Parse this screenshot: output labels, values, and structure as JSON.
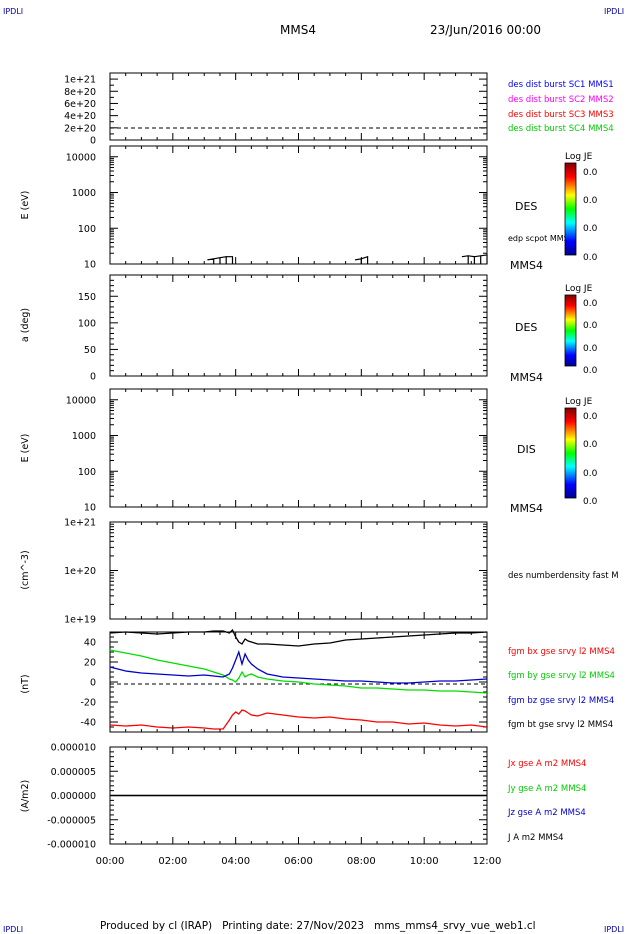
{
  "corner_tag": "IPDLI",
  "header": {
    "spacecraft": "MMS4",
    "date": "23/Jun/2016 00:00"
  },
  "footer": {
    "text": "Produced by cl (IRAP)   Printing date: 27/Nov/2023   mms_mms4_srvy_vue_web1.cl"
  },
  "colors": {
    "series1": "#0000ff",
    "series2": "#ff00ff",
    "series3": "#ff0000",
    "series4": "#00dd00",
    "blue": "#0000cc",
    "red": "#ff0000",
    "green": "#00dd00",
    "black": "#000000"
  },
  "x_axis": {
    "ticks": [
      "00:00",
      "02:00",
      "04:00",
      "06:00",
      "08:00",
      "10:00",
      "12:00"
    ]
  },
  "chart_data": [
    {
      "type": "line",
      "panel": "burst",
      "yticks": [
        "1e+21",
        "8e+20",
        "6e+20",
        "4e+20",
        "2e+20",
        "0"
      ],
      "ylim": [
        0,
        1.1e+21
      ],
      "legend": [
        "des dist burst SC1 MMS1",
        "des dist burst SC2 MMS2",
        "des dist burst SC3 MMS3",
        "des dist burst SC4 MMS4"
      ]
    },
    {
      "type": "heatmap",
      "panel": "des-energy",
      "ylabel": "E (eV)",
      "log": true,
      "yticks": [
        "10000",
        "1000",
        "100",
        "10"
      ],
      "ylim": [
        10,
        20000
      ],
      "instrument": "DES",
      "spacecraft": "MMS4",
      "overlay_label": "edp scpot MMS4",
      "colorbar": {
        "title": "Log JE",
        "ticks": [
          "0.0",
          "0.0",
          "0.0",
          "0.0"
        ]
      },
      "scpot_segments": [
        {
          "x": [
            3.1,
            3.3,
            3.5,
            3.7,
            3.9
          ],
          "y": [
            13,
            14,
            15,
            16,
            16
          ]
        },
        {
          "x": [
            7.8,
            8.0,
            8.2
          ],
          "y": [
            13,
            14,
            16
          ]
        },
        {
          "x": [
            11.2,
            11.4,
            11.6,
            11.8,
            12.0
          ],
          "y": [
            16,
            17,
            16,
            17,
            18
          ]
        }
      ]
    },
    {
      "type": "heatmap",
      "panel": "des-pitch",
      "ylabel": "a (deg)",
      "yticks": [
        "150",
        "100",
        "50",
        "0"
      ],
      "ylim": [
        0,
        190
      ],
      "instrument": "DES",
      "spacecraft": "MMS4",
      "colorbar": {
        "title": "Log JE",
        "ticks": [
          "0.0",
          "0.0",
          "0.0",
          "0.0"
        ]
      }
    },
    {
      "type": "heatmap",
      "panel": "dis-energy",
      "ylabel": "E (eV)",
      "log": true,
      "yticks": [
        "10000",
        "1000",
        "100",
        "10"
      ],
      "ylim": [
        10,
        20000
      ],
      "instrument": "DIS",
      "spacecraft": "MMS4",
      "colorbar": {
        "title": "Log JE",
        "ticks": [
          "0.0",
          "0.0",
          "0.0",
          "0.0"
        ]
      }
    },
    {
      "type": "line",
      "panel": "density",
      "ylabel": "(cm^-3)",
      "yticks": [
        "1e+21",
        "1e+20",
        "1e+19"
      ],
      "log": true,
      "ylim": [
        1e+19,
        1e+21
      ],
      "legend": [
        "des numberdensity fast M"
      ]
    },
    {
      "type": "line",
      "panel": "fgm",
      "ylabel": "(nT)",
      "yticks": [
        "40",
        "20",
        "0",
        "-20",
        "-40"
      ],
      "ylim": [
        -50,
        50
      ],
      "x": [
        0,
        0.5,
        1,
        1.5,
        2,
        2.5,
        3,
        3.3,
        3.6,
        3.8,
        3.9,
        4.0,
        4.1,
        4.2,
        4.3,
        4.4,
        4.5,
        4.7,
        5.0,
        5.5,
        6,
        6.5,
        7,
        7.5,
        8,
        8.5,
        9,
        9.5,
        10,
        10.5,
        11,
        11.5,
        12
      ],
      "series": [
        {
          "name": "fgm bx gse srvy l2 MMS4",
          "values": [
            -43,
            -44,
            -43,
            -45,
            -46,
            -45,
            -46,
            -47,
            -47,
            -38,
            -33,
            -30,
            -32,
            -28,
            -29,
            -31,
            -33,
            -34,
            -31,
            -33,
            -35,
            -36,
            -35,
            -37,
            -38,
            -40,
            -40,
            -42,
            -41,
            -43,
            -44,
            -43,
            -45
          ]
        },
        {
          "name": "fgm by gse srvy l2 MMS4",
          "values": [
            32,
            29,
            26,
            22,
            19,
            16,
            13,
            10,
            7,
            3,
            2,
            0,
            4,
            10,
            5,
            7,
            8,
            5,
            3,
            1,
            0,
            -2,
            -3,
            -4,
            -6,
            -6,
            -7,
            -8,
            -8,
            -9,
            -9,
            -10,
            -11
          ]
        },
        {
          "name": "fgm bz gse srvy l2 MMS4",
          "values": [
            15,
            11,
            9,
            8,
            7,
            6,
            7,
            6,
            5,
            8,
            14,
            22,
            30,
            18,
            28,
            22,
            18,
            13,
            8,
            5,
            4,
            3,
            2,
            1,
            1,
            0,
            -1,
            -1,
            0,
            1,
            1,
            2,
            3
          ]
        },
        {
          "name": "fgm bt gse srvy l2 MMS4",
          "values": [
            49,
            50,
            49,
            48,
            49,
            50,
            50,
            51,
            51,
            49,
            52,
            45,
            40,
            38,
            43,
            41,
            40,
            38,
            38,
            37,
            36,
            38,
            39,
            42,
            43,
            44,
            45,
            46,
            47,
            48,
            49,
            49,
            50
          ]
        }
      ]
    },
    {
      "type": "line",
      "panel": "current",
      "ylabel": "(A/m2)",
      "yticks": [
        "0.000010",
        "0.000005",
        "0.000000",
        "-0.000005",
        "-0.000010"
      ],
      "ylim": [
        -1e-05,
        1e-05
      ],
      "x": [
        0,
        12
      ],
      "series": [
        {
          "name": "Jx gse A m2 MMS4",
          "values": [
            0,
            0
          ]
        },
        {
          "name": "Jy gse A m2 MMS4",
          "values": [
            0,
            0
          ]
        },
        {
          "name": "Jz gse A m2 MMS4",
          "values": [
            0,
            0
          ]
        },
        {
          "name": "J A m2 MMS4",
          "values": [
            0,
            0
          ]
        }
      ]
    }
  ]
}
